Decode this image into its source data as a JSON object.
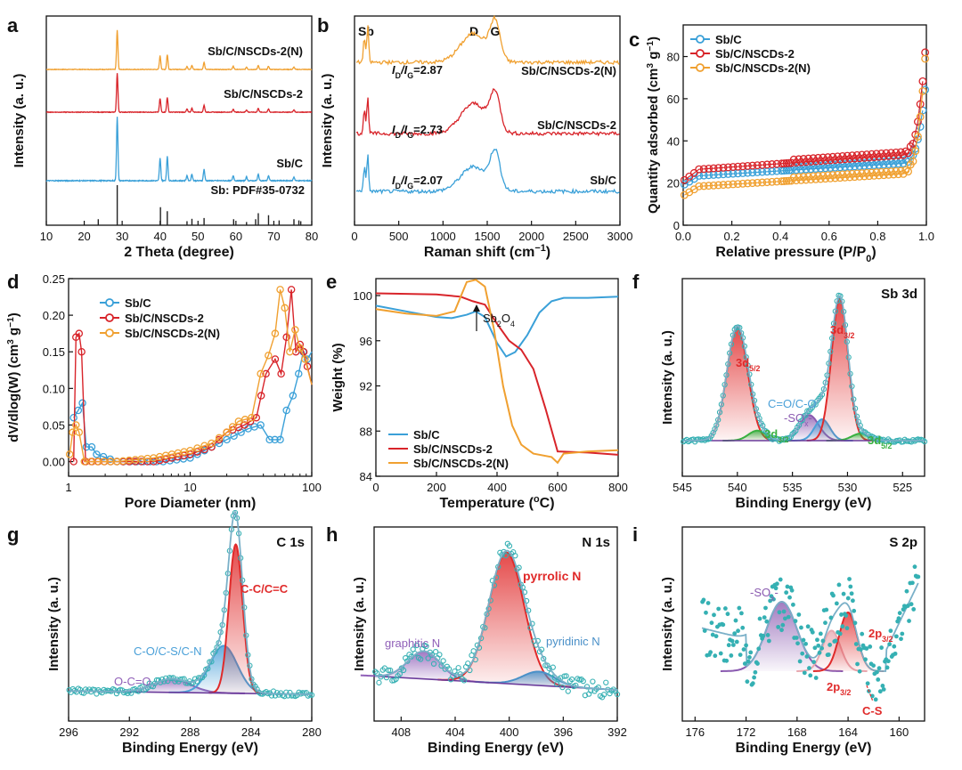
{
  "colors": {
    "sb_c": "#3aa0d8",
    "sb_c_nscds": "#d8242a",
    "sb_c_nscds_n": "#f0a030",
    "raw": "#35b0b3",
    "envelope": "#7ab0c8",
    "baseline": "#6a3a9a",
    "ref": "#222222",
    "sb3d_peak": "#e02a2a",
    "co_peak": "#4aa0d8",
    "sox_peak": "#8a5ab0",
    "sb3d_minor": "#3ab040",
    "graphitic": "#9060b8",
    "pyridinic": "#4a90c8"
  },
  "chart_data": [
    {
      "panel": "a",
      "type": "line",
      "title": "",
      "xlabel": "2 Theta (degree)",
      "ylabel": "Intensity (a. u.)",
      "xlim": [
        10,
        80
      ],
      "xticks": [
        10,
        20,
        30,
        40,
        50,
        60,
        70,
        80
      ],
      "series": [
        {
          "name": "Sb/C/NSCDs-2(N)",
          "color": "#f0a030",
          "peaks": [
            [
              28.7,
              1.0
            ],
            [
              40.0,
              0.35
            ],
            [
              41.9,
              0.38
            ],
            [
              47.1,
              0.08
            ],
            [
              48.4,
              0.1
            ],
            [
              51.6,
              0.18
            ],
            [
              59.3,
              0.08
            ],
            [
              62.8,
              0.06
            ],
            [
              65.9,
              0.1
            ],
            [
              68.6,
              0.08
            ],
            [
              75.3,
              0.06
            ]
          ]
        },
        {
          "name": "Sb/C/NSCDs-2",
          "color": "#d8242a",
          "peaks": [
            [
              28.7,
              1.0
            ],
            [
              40.0,
              0.35
            ],
            [
              41.9,
              0.38
            ],
            [
              47.1,
              0.08
            ],
            [
              48.4,
              0.1
            ],
            [
              51.6,
              0.18
            ],
            [
              59.3,
              0.08
            ],
            [
              62.8,
              0.06
            ],
            [
              65.9,
              0.1
            ],
            [
              68.6,
              0.08
            ],
            [
              75.3,
              0.06
            ]
          ]
        },
        {
          "name": "Sb/C",
          "color": "#3aa0d8",
          "peaks": [
            [
              28.7,
              1.0
            ],
            [
              40.0,
              0.35
            ],
            [
              41.9,
              0.38
            ],
            [
              47.1,
              0.08
            ],
            [
              48.4,
              0.1
            ],
            [
              51.6,
              0.18
            ],
            [
              59.3,
              0.08
            ],
            [
              62.8,
              0.06
            ],
            [
              65.9,
              0.1
            ],
            [
              68.6,
              0.08
            ],
            [
              75.3,
              0.06
            ]
          ]
        }
      ],
      "reference": {
        "name": "Sb: PDF#35-0732",
        "color": "#222222",
        "sticks": [
          [
            23.7,
            0.15
          ],
          [
            28.7,
            1.0
          ],
          [
            40.1,
            0.45
          ],
          [
            41.9,
            0.35
          ],
          [
            47.1,
            0.1
          ],
          [
            48.4,
            0.16
          ],
          [
            51.6,
            0.18
          ],
          [
            59.4,
            0.15
          ],
          [
            62.8,
            0.08
          ],
          [
            65.2,
            0.15
          ],
          [
            65.9,
            0.3
          ],
          [
            68.6,
            0.25
          ],
          [
            71.4,
            0.12
          ],
          [
            75.3,
            0.15
          ],
          [
            76.6,
            0.12
          ],
          [
            77.1,
            0.1
          ]
        ]
      }
    },
    {
      "panel": "b",
      "type": "line",
      "title": "",
      "xlabel": "Raman shift (cm⁻¹)",
      "ylabel": "Intensity (a. u.)",
      "xlim": [
        0,
        3000
      ],
      "xticks": [
        0,
        500,
        1000,
        1500,
        2000,
        2500,
        3000
      ],
      "peak_labels": [
        {
          "text": "Sb",
          "x": 140
        },
        {
          "text": "D",
          "x": 1350
        },
        {
          "text": "G",
          "x": 1590
        }
      ],
      "series": [
        {
          "name": "Sb/C/NSCDs-2(N)",
          "color": "#f0a030",
          "ratio_label": "2.87"
        },
        {
          "name": "Sb/C/NSCDs-2",
          "color": "#d8242a",
          "ratio_label": "2.73"
        },
        {
          "name": "Sb/C",
          "color": "#3aa0d8",
          "ratio_label": "2.07"
        }
      ]
    },
    {
      "panel": "c",
      "type": "scatter",
      "title": "",
      "xlabel": "Relative pressure (P/P0)",
      "ylabel": "Quantity adsorbed (cm³ g⁻¹)",
      "xlim": [
        0.0,
        1.0
      ],
      "ylim": [
        0,
        95
      ],
      "xticks": [
        "0.0",
        "0.2",
        "0.4",
        "0.6",
        "0.8",
        "1.0"
      ],
      "yticks": [
        0,
        20,
        40,
        60,
        80
      ],
      "legend": "top-left",
      "series": [
        {
          "name": "Sb/C",
          "color": "#3aa0d8",
          "y0": 19,
          "plateau": 23,
          "slope": 7,
          "ymax": 70
        },
        {
          "name": "Sb/C/NSCDs-2",
          "color": "#d8242a",
          "y0": 21,
          "plateau": 26,
          "slope": 8,
          "ymax": 90
        },
        {
          "name": "Sb/C/NSCDs-2(N)",
          "color": "#f0a030",
          "y0": 14,
          "plateau": 18,
          "slope": 7,
          "ymax": 88
        }
      ]
    },
    {
      "panel": "d",
      "type": "line",
      "title": "",
      "xlabel": "Pore Diameter (nm)",
      "ylabel": "dV/dlog(W) (cm³ g⁻¹)",
      "xscale": "log",
      "xlim": [
        1,
        100
      ],
      "ylim": [
        -0.02,
        0.25
      ],
      "xticks": [
        1,
        10,
        100
      ],
      "yticks": [
        "0.00",
        "0.05",
        "0.10",
        "0.15",
        "0.20",
        "0.25"
      ],
      "legend": "top-left",
      "series": [
        {
          "name": "Sb/C",
          "color": "#3aa0d8",
          "points": [
            [
              1.1,
              0.06
            ],
            [
              1.2,
              0.07
            ],
            [
              1.3,
              0.08
            ],
            [
              1.4,
              0.02
            ],
            [
              1.55,
              0.02
            ],
            [
              1.7,
              0.01
            ],
            [
              2.5,
              0.0
            ],
            [
              6,
              0.0
            ],
            [
              10,
              0.005
            ],
            [
              15,
              0.02
            ],
            [
              20,
              0.03
            ],
            [
              30,
              0.045
            ],
            [
              38,
              0.05
            ],
            [
              45,
              0.03
            ],
            [
              55,
              0.03
            ],
            [
              62,
              0.07
            ],
            [
              70,
              0.09
            ],
            [
              78,
              0.12
            ],
            [
              85,
              0.15
            ],
            [
              92,
              0.14
            ],
            [
              100,
              0.15
            ]
          ]
        },
        {
          "name": "Sb/C/NSCDs-2",
          "color": "#d8242a",
          "points": [
            [
              1.1,
              0.0
            ],
            [
              1.15,
              0.17
            ],
            [
              1.22,
              0.175
            ],
            [
              1.28,
              0.15
            ],
            [
              1.38,
              0.0
            ],
            [
              2.5,
              0.0
            ],
            [
              5,
              0.0
            ],
            [
              10,
              0.01
            ],
            [
              15,
              0.02
            ],
            [
              20,
              0.04
            ],
            [
              28,
              0.05
            ],
            [
              35,
              0.06
            ],
            [
              42,
              0.12
            ],
            [
              50,
              0.14
            ],
            [
              56,
              0.12
            ],
            [
              62,
              0.17
            ],
            [
              68,
              0.235
            ],
            [
              74,
              0.15
            ],
            [
              80,
              0.16
            ],
            [
              86,
              0.15
            ],
            [
              92,
              0.13
            ],
            [
              100,
              0.105
            ]
          ]
        },
        {
          "name": "Sb/C/NSCDs-2(N)",
          "color": "#f0a030",
          "points": [
            [
              1.02,
              0.01
            ],
            [
              1.08,
              0.04
            ],
            [
              1.15,
              0.05
            ],
            [
              1.22,
              0.04
            ],
            [
              1.35,
              0.0
            ],
            [
              2.5,
              0.0
            ],
            [
              5,
              0.005
            ],
            [
              10,
              0.015
            ],
            [
              15,
              0.025
            ],
            [
              20,
              0.04
            ],
            [
              25,
              0.055
            ],
            [
              32,
              0.06
            ],
            [
              38,
              0.12
            ],
            [
              44,
              0.145
            ],
            [
              50,
              0.175
            ],
            [
              55,
              0.235
            ],
            [
              60,
              0.21
            ],
            [
              66,
              0.15
            ],
            [
              73,
              0.18
            ],
            [
              80,
              0.155
            ],
            [
              88,
              0.14
            ],
            [
              100,
              0.105
            ]
          ]
        }
      ]
    },
    {
      "panel": "e",
      "type": "line",
      "title": "",
      "xlabel": "Temperature (°C)",
      "ylabel": "Weight (%)",
      "xlim": [
        0,
        800
      ],
      "ylim": [
        84,
        101.5
      ],
      "xticks": [
        0,
        200,
        400,
        600,
        800
      ],
      "yticks": [
        84,
        88,
        92,
        96,
        100
      ],
      "annotation": "Sb₂O₄",
      "legend": "bottom-left",
      "series": [
        {
          "name": "Sb/C",
          "color": "#3aa0d8",
          "points": [
            [
              0,
              99.1
            ],
            [
              100,
              98.6
            ],
            [
              200,
              98.1
            ],
            [
              250,
              98.0
            ],
            [
              300,
              98.3
            ],
            [
              330,
              98.6
            ],
            [
              360,
              98.1
            ],
            [
              400,
              95.8
            ],
            [
              430,
              94.6
            ],
            [
              460,
              95.0
            ],
            [
              500,
              96.5
            ],
            [
              540,
              98.5
            ],
            [
              580,
              99.5
            ],
            [
              620,
              99.8
            ],
            [
              700,
              99.8
            ],
            [
              800,
              99.9
            ]
          ]
        },
        {
          "name": "Sb/C/NSCDs-2",
          "color": "#d8242a",
          "points": [
            [
              0,
              100.2
            ],
            [
              200,
              100.1
            ],
            [
              280,
              99.9
            ],
            [
              320,
              99.5
            ],
            [
              360,
              99.2
            ],
            [
              400,
              97.5
            ],
            [
              440,
              96.0
            ],
            [
              480,
              95.2
            ],
            [
              520,
              93.5
            ],
            [
              560,
              90.0
            ],
            [
              600,
              86.2
            ],
            [
              700,
              86.1
            ],
            [
              800,
              85.9
            ]
          ]
        },
        {
          "name": "Sb/C/NSCDs-2(N)",
          "color": "#f0a030",
          "points": [
            [
              0,
              98.8
            ],
            [
              100,
              98.4
            ],
            [
              200,
              98.2
            ],
            [
              260,
              98.6
            ],
            [
              300,
              101.2
            ],
            [
              330,
              101.4
            ],
            [
              360,
              100.8
            ],
            [
              390,
              97.0
            ],
            [
              420,
              92.0
            ],
            [
              450,
              88.5
            ],
            [
              480,
              86.8
            ],
            [
              520,
              86.0
            ],
            [
              580,
              85.7
            ],
            [
              600,
              85.2
            ],
            [
              620,
              86.0
            ],
            [
              700,
              86.2
            ],
            [
              800,
              86.3
            ]
          ]
        }
      ]
    },
    {
      "panel": "f",
      "type": "line",
      "title": "Sb 3d",
      "xlabel": "Binding Energy (eV)",
      "ylabel": "Intensity (a. u.)",
      "xlim": [
        545,
        523
      ],
      "xticks": [
        545,
        540,
        535,
        530,
        525
      ],
      "baseline": 0.08,
      "components": [
        {
          "label": "3d5/2",
          "center": 540.0,
          "height": 0.8,
          "width": 0.95,
          "color": "#e02a2a"
        },
        {
          "label": "3d3/2",
          "center": 538.2,
          "height": 0.07,
          "width": 0.8,
          "color": "#3ab040"
        },
        {
          "label": "-SOx-",
          "center": 533.5,
          "height": 0.18,
          "width": 0.9,
          "color": "#8a5ab0"
        },
        {
          "label": "C=O/C-O",
          "center": 532.3,
          "height": 0.15,
          "width": 0.7,
          "color": "#4aa0d8"
        },
        {
          "label": "3d3/2",
          "center": 530.7,
          "height": 1.0,
          "width": 0.75,
          "color": "#e02a2a"
        },
        {
          "label": "3d5/2",
          "center": 528.8,
          "height": 0.05,
          "width": 0.8,
          "color": "#3ab040"
        }
      ]
    },
    {
      "panel": "g",
      "type": "line",
      "title": "C 1s",
      "xlabel": "Binding Energy (eV)",
      "ylabel": "Intensity (a. u.)",
      "xlim": [
        296,
        280
      ],
      "xticks": [
        296,
        292,
        288,
        284,
        280
      ],
      "baseline": 0.05,
      "components": [
        {
          "label": "O-C=O",
          "center": 289.2,
          "height": 0.08,
          "width": 1.2,
          "color": "#9060b8"
        },
        {
          "label": "C-O/C-S/C-N",
          "center": 285.8,
          "height": 0.28,
          "width": 0.9,
          "color": "#4aa0d8"
        },
        {
          "label": "C-C/C=C",
          "center": 285.0,
          "height": 0.88,
          "width": 0.45,
          "color": "#e02a2a"
        }
      ]
    },
    {
      "panel": "h",
      "type": "line",
      "title": "N 1s",
      "xlabel": "Binding Energy (eV)",
      "ylabel": "Intensity (a. u.)",
      "xlim": [
        410,
        392
      ],
      "xticks": [
        408,
        404,
        400,
        396,
        392
      ],
      "baseline": 0.05,
      "components": [
        {
          "label": "graphitic N",
          "center": 406.3,
          "height": 0.2,
          "width": 1.2,
          "color": "#9060b8"
        },
        {
          "label": "pyrrolic N",
          "center": 400.2,
          "height": 0.95,
          "width": 1.3,
          "color": "#e02a2a"
        },
        {
          "label": "pyridinic N",
          "center": 397.8,
          "height": 0.1,
          "width": 1.2,
          "color": "#4a90c8"
        }
      ]
    },
    {
      "panel": "i",
      "type": "line",
      "title": "S 2p",
      "xlabel": "Binding Energy (eV)",
      "ylabel": "Intensity (a. u.)",
      "xlim": [
        177,
        158
      ],
      "xticks": [
        176,
        172,
        168,
        164,
        160
      ],
      "components": [
        {
          "label": "-SOx-",
          "center": 169.2,
          "height": 0.65,
          "width": 1.2,
          "color": "#8a5ab0"
        },
        {
          "label": "2p3/2",
          "center": 165.3,
          "height": 0.38,
          "width": 0.7,
          "color": "#e8a8b0"
        },
        {
          "label": "2p1/2",
          "center": 164.0,
          "height": 0.55,
          "width": 0.7,
          "color": "#e02a2a"
        }
      ],
      "annotation": "C-S"
    }
  ],
  "panels": {
    "a": {
      "letter": "a",
      "ref_label": "Sb: PDF#35-0732"
    },
    "b": {
      "letter": "b",
      "ratio_prefix": "I",
      "ratio_sub1": "D",
      "ratio_mid": "/I",
      "ratio_sub2": "G",
      "ratio_eq": "="
    },
    "c": {
      "letter": "c",
      "xlabel_main": "Relative pressure (P/P",
      "xlabel_sub": "0",
      "xlabel_end": ")"
    },
    "d": {
      "letter": "d"
    },
    "e": {
      "letter": "e"
    },
    "f": {
      "letter": "f"
    },
    "g": {
      "letter": "g"
    },
    "h": {
      "letter": "h"
    },
    "i": {
      "letter": "i"
    }
  }
}
